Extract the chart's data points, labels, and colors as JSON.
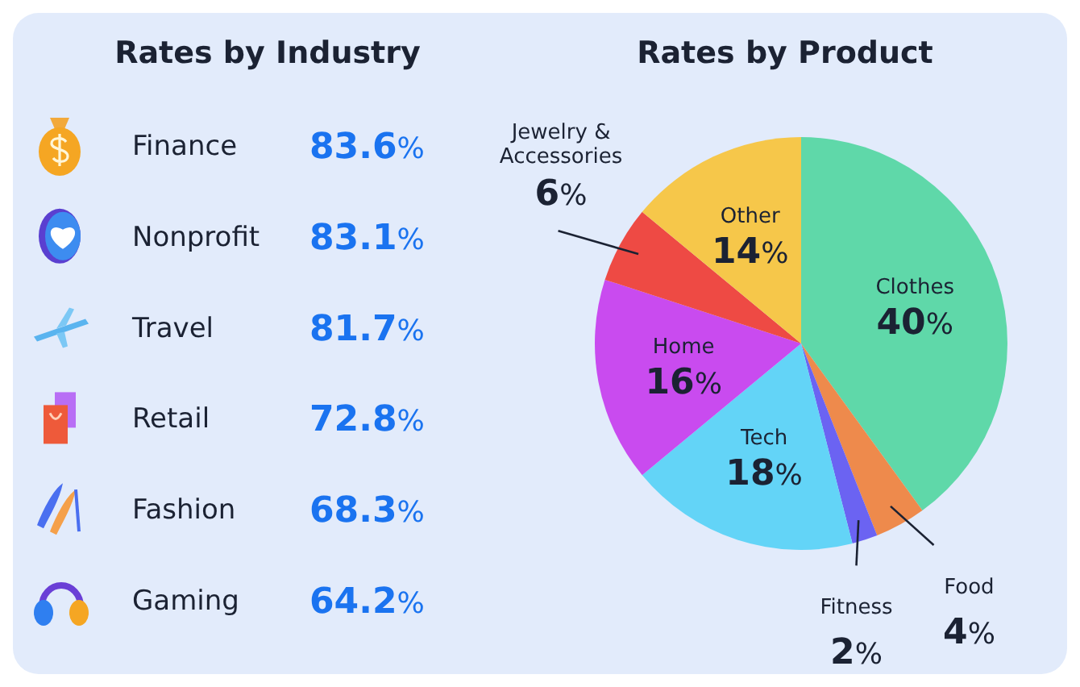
{
  "chart_data": [
    {
      "type": "other",
      "title": "Rates by Industry",
      "categories": [
        "Finance",
        "Nonprofit",
        "Travel",
        "Retail",
        "Fashion",
        "Gaming"
      ],
      "values": [
        83.6,
        83.1,
        81.7,
        72.8,
        68.3,
        64.2
      ],
      "value_labels": [
        "83.6%",
        "83.1%",
        "81.7%",
        "72.8%",
        "68.3%",
        "64.2%"
      ],
      "color": "#1a73f0"
    },
    {
      "type": "pie",
      "title": "Rates by Product",
      "categories": [
        "Clothes",
        "Food",
        "Fitness",
        "Tech",
        "Home",
        "Jewelry & Accessories",
        "Other"
      ],
      "values": [
        40,
        4,
        2,
        18,
        16,
        6,
        14
      ],
      "value_labels": [
        "40%",
        "4%",
        "2%",
        "18%",
        "16%",
        "6%",
        "14%"
      ],
      "colors": [
        "#5fd8a9",
        "#ee8a4c",
        "#6b63f2",
        "#63d4f7",
        "#c94bef",
        "#ee4a44",
        "#f6c74a"
      ]
    }
  ]
}
